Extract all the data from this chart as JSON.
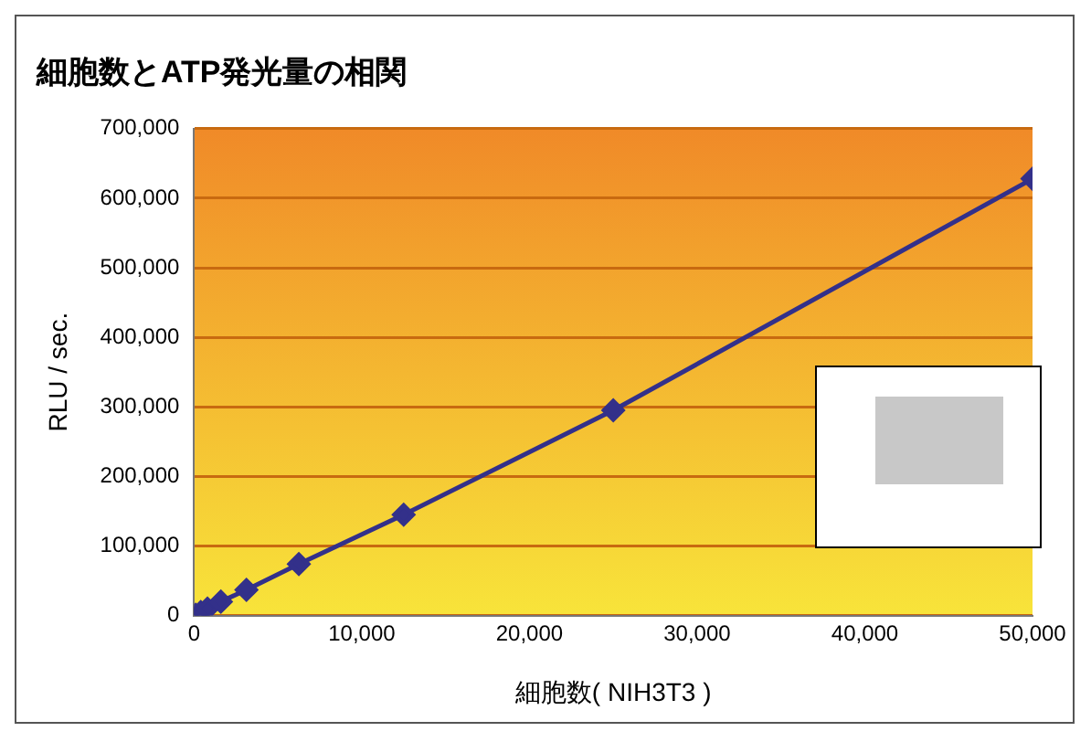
{
  "chart_data": {
    "type": "line",
    "title": "細胞数とATP発光量の相関",
    "xlabel": "細胞数( NIH3T3 )",
    "ylabel": "RLU / sec.",
    "x": [
      100,
      200,
      400,
      800,
      1600,
      3125,
      6250,
      12500,
      25000,
      50000
    ],
    "series": [
      {
        "color": "#33308a",
        "values": [
          1000,
          null,
          5000,
          10000,
          20000,
          37000,
          74000,
          145000,
          295000,
          628000
        ]
      }
    ],
    "xlim": [
      0,
      50000
    ],
    "xticks": [
      {
        "value": 0,
        "label": "0"
      },
      {
        "value": 10000,
        "label": "10,000"
      },
      {
        "value": 20000,
        "label": "20,000"
      },
      {
        "value": 30000,
        "label": "30,000"
      },
      {
        "value": 40000,
        "label": "40,000"
      },
      {
        "value": 50000,
        "label": "50,000"
      }
    ],
    "ylim": [
      0,
      700000
    ],
    "yticks": [
      {
        "value": 0,
        "label": "0"
      },
      {
        "value": 100000,
        "label": "100,000"
      },
      {
        "value": 200000,
        "label": "200,000"
      },
      {
        "value": 300000,
        "label": "300,000"
      },
      {
        "value": 400000,
        "label": "400,000"
      },
      {
        "value": 500000,
        "label": "500,000"
      },
      {
        "value": 600000,
        "label": "600,000"
      },
      {
        "value": 700000,
        "label": "700,000"
      }
    ],
    "grid": "y",
    "legend": false,
    "marker": "diamond",
    "line_style": "solid"
  }
}
